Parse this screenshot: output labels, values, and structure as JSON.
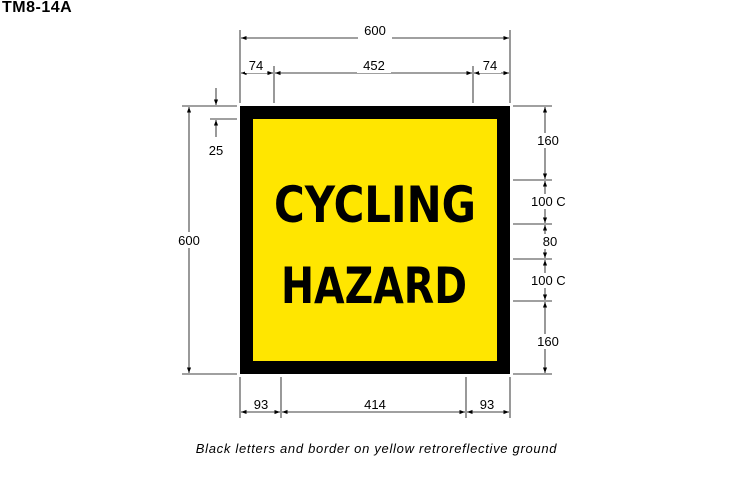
{
  "drawing_code": "TM8-14A",
  "caption": "Black letters and border on yellow retroreflective ground",
  "sign": {
    "line1": "CYCLING",
    "line2": "HAZARD",
    "background_color": "#FFE600",
    "border_color": "#000000",
    "letter_color": "#000000"
  },
  "dimensions": {
    "top_overall": "600",
    "top_left": "74",
    "top_middle": "452",
    "top_right": "74",
    "bottom_left": "93",
    "bottom_middle": "414",
    "bottom_right": "93",
    "left_overall": "600",
    "left_border": "25",
    "right_top": "160",
    "right_line1": "100 C",
    "right_gap": "80",
    "right_line2": "100 C",
    "right_bottom": "160"
  }
}
